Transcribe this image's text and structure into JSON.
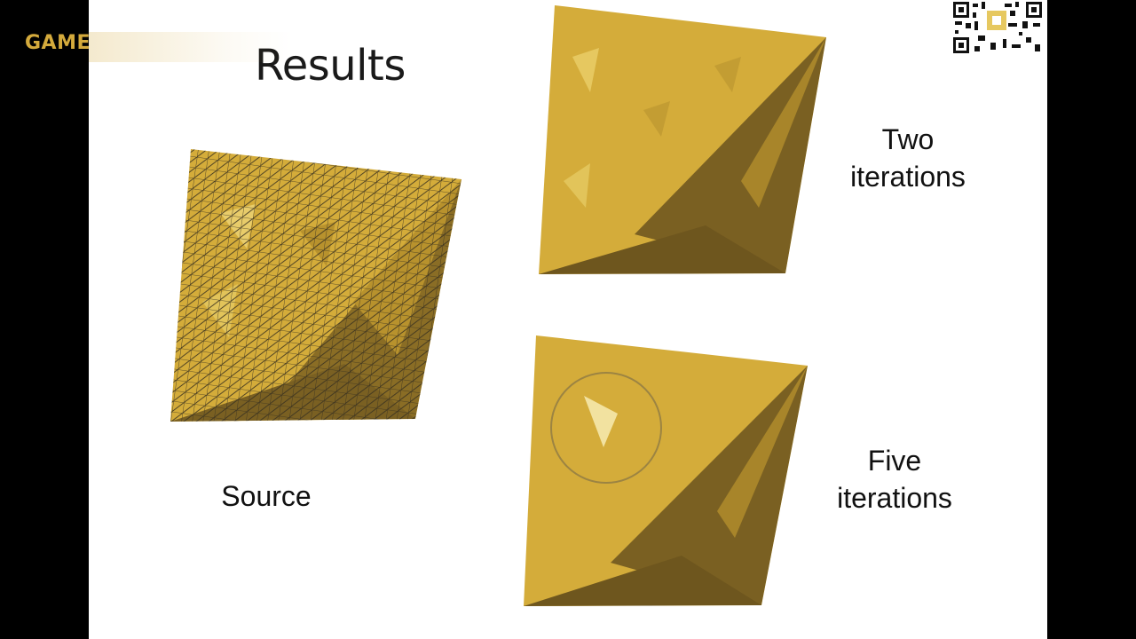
{
  "brand": {
    "text": "GAME",
    "color": "#d4aa3c"
  },
  "slide": {
    "title": "Results",
    "labels": {
      "source": "Source",
      "two_line1": "Two",
      "two_line2": "iterations",
      "five_line1": "Five",
      "five_line2": "iterations"
    }
  },
  "colors": {
    "mesh_fill": "#d4ac3a",
    "mesh_shadow": "#7a6022",
    "wire": "#3a3220",
    "background": "#ffffff",
    "letterbox": "#000000"
  },
  "icons": [
    "qr-code-icon"
  ]
}
